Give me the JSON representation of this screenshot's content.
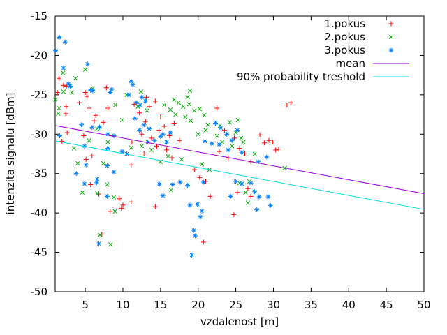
{
  "chart": {
    "x_ticks": [
      5,
      10,
      15,
      20,
      25,
      30,
      35,
      40,
      45,
      50
    ],
    "y_ticks": [
      -50,
      -45,
      -40,
      -35,
      -30,
      -25,
      -20,
      -15
    ],
    "frame_color": "#000000",
    "background": "#ffffff"
  },
  "chart_data": {
    "type": "scatter",
    "title": "",
    "xlabel": "vzdalenost [m]",
    "ylabel": "intenzita signalu [dBm]",
    "xlim": [
      1,
      50
    ],
    "ylim": [
      -50,
      -15
    ],
    "grid": false,
    "legend_position": "top-right",
    "series": [
      {
        "name": "1.pokus",
        "marker": "plus",
        "color": "#ff0000",
        "points": [
          [
            1.3,
            -24.7
          ],
          [
            1.5,
            -22.9
          ],
          [
            2.1,
            -23.8
          ],
          [
            2.5,
            -23.9
          ],
          [
            5.0,
            -24.7
          ],
          [
            5.2,
            -25.2
          ],
          [
            7.8,
            -24.1
          ],
          [
            2.45,
            -26.5
          ],
          [
            4.2,
            -26.0
          ],
          [
            5.5,
            -26.7
          ],
          [
            8.0,
            -26.7
          ],
          [
            2.4,
            -27.4
          ],
          [
            6.4,
            -27.6
          ],
          [
            6.2,
            -28.3
          ],
          [
            7.4,
            -28.5
          ],
          [
            4.8,
            -30.2
          ],
          [
            1.9,
            -30.9
          ],
          [
            2.6,
            -29.8
          ],
          [
            5.9,
            -32.75
          ],
          [
            5.1,
            -33.2
          ],
          [
            11.1,
            -33.9
          ],
          [
            5.7,
            -36.4
          ],
          [
            6.8,
            -37.6
          ],
          [
            9.5,
            -38.2
          ],
          [
            11.1,
            -38.6
          ],
          [
            10.0,
            -39.0
          ],
          [
            9.8,
            -39.4
          ],
          [
            8.3,
            -39.8
          ],
          [
            7.2,
            -42.7
          ],
          [
            13.1,
            -25.3
          ],
          [
            11.5,
            -26.2
          ],
          [
            12.2,
            -27.3
          ],
          [
            13.5,
            -26.5
          ],
          [
            14.3,
            -25.8
          ],
          [
            15.0,
            -27.8
          ],
          [
            13.0,
            -28.4
          ],
          [
            14.8,
            -29.5
          ],
          [
            12.5,
            -30.0
          ],
          [
            11.2,
            -31.0
          ],
          [
            13.8,
            -30.5
          ],
          [
            15.5,
            -29.0
          ],
          [
            16.2,
            -30.2
          ],
          [
            14.5,
            -31.5
          ],
          [
            15.8,
            -32.0
          ],
          [
            12.8,
            -32.5
          ],
          [
            16.8,
            -28.6
          ],
          [
            17.5,
            -30.8
          ],
          [
            16.5,
            -33.0
          ],
          [
            19.5,
            -34.5
          ],
          [
            20.2,
            -35.5
          ],
          [
            21.0,
            -36.0
          ],
          [
            14.3,
            -39.2
          ],
          [
            21.6,
            -37.9
          ],
          [
            20.7,
            -43.7
          ],
          [
            22.5,
            -26.7
          ],
          [
            32.3,
            -26.0
          ],
          [
            31.8,
            -26.3
          ],
          [
            28.2,
            -30.1
          ],
          [
            28.8,
            -31.1
          ],
          [
            29.4,
            -30.8
          ],
          [
            29.9,
            -31.0
          ],
          [
            30.3,
            -32.0
          ],
          [
            30.7,
            -31.9
          ],
          [
            23.5,
            -29.5
          ],
          [
            24.8,
            -30.5
          ],
          [
            25.5,
            -31.8
          ],
          [
            26.2,
            -32.5
          ],
          [
            27.0,
            -33.5
          ],
          [
            24.0,
            -33.0
          ],
          [
            22.8,
            -32.2
          ],
          [
            26.6,
            -36.9
          ],
          [
            25.2,
            -37.4
          ],
          [
            27.0,
            -37.9
          ],
          [
            24.75,
            -40.2
          ]
        ]
      },
      {
        "name": "2.pokus",
        "marker": "cross",
        "color": "#00ac00",
        "points": [
          [
            2.05,
            -22.2
          ],
          [
            5.0,
            -21.8
          ],
          [
            3.7,
            -22.9
          ],
          [
            2.1,
            -24.6
          ],
          [
            3.2,
            -24.7
          ],
          [
            6.0,
            -24.2
          ],
          [
            1.0,
            -25.6
          ],
          [
            1.5,
            -26.7
          ],
          [
            1.4,
            -27.4
          ],
          [
            9.0,
            -26.3
          ],
          [
            10.5,
            -25.0
          ],
          [
            6.6,
            -29.3
          ],
          [
            9.9,
            -28.2
          ],
          [
            5.5,
            -30.8
          ],
          [
            3.5,
            -31.8
          ],
          [
            8.0,
            -31.0
          ],
          [
            11.1,
            -31.7
          ],
          [
            4.0,
            -33.7
          ],
          [
            7.4,
            -33.7
          ],
          [
            7.9,
            -36.4
          ],
          [
            4.6,
            -37.4
          ],
          [
            6.6,
            -37.5
          ],
          [
            8.8,
            -38.0
          ],
          [
            8.95,
            -39.8
          ],
          [
            6.94,
            -42.8
          ],
          [
            8.36,
            -44.0
          ],
          [
            12.4,
            -24.6
          ],
          [
            18.9,
            -24.5
          ],
          [
            18.6,
            -25.3
          ],
          [
            16.8,
            -25.6
          ],
          [
            17.4,
            -26.0
          ],
          [
            18.0,
            -26.5
          ],
          [
            18.8,
            -26.2
          ],
          [
            19.5,
            -27.0
          ],
          [
            20.2,
            -26.8
          ],
          [
            17.0,
            -27.5
          ],
          [
            18.3,
            -27.8
          ],
          [
            19.0,
            -28.3
          ],
          [
            20.8,
            -27.6
          ],
          [
            21.3,
            -28.8
          ],
          [
            16.3,
            -26.9
          ],
          [
            12.0,
            -26.5
          ],
          [
            13.2,
            -27.0
          ],
          [
            15.5,
            -26.3
          ],
          [
            12.5,
            -31.5
          ],
          [
            13.8,
            -32.0
          ],
          [
            15.0,
            -33.5
          ],
          [
            16.0,
            -32.8
          ],
          [
            17.8,
            -33.2
          ],
          [
            20.0,
            -30.0
          ],
          [
            21.0,
            -29.5
          ],
          [
            20.5,
            -33.8
          ],
          [
            21.5,
            -34.5
          ],
          [
            16.4,
            -37.1
          ],
          [
            22.9,
            -28.9
          ],
          [
            24.2,
            -28.5
          ],
          [
            25.0,
            -29.8
          ],
          [
            25.7,
            -30.5
          ],
          [
            23.2,
            -31.0
          ],
          [
            24.5,
            -31.5
          ],
          [
            26.0,
            -31.0
          ],
          [
            22.5,
            -30.2
          ],
          [
            25.3,
            -28.2
          ],
          [
            27.5,
            -32.5
          ],
          [
            31.5,
            -34.3
          ],
          [
            25.5,
            -36.2
          ],
          [
            26.8,
            -36.0
          ],
          [
            26.3,
            -37.4
          ],
          [
            26.6,
            -38.7
          ]
        ]
      },
      {
        "name": "3.pokus",
        "marker": "asterisk",
        "color": "#0080ff",
        "points": [
          [
            1.56,
            -17.7
          ],
          [
            2.33,
            -18.3
          ],
          [
            1.05,
            -19.4
          ],
          [
            2.1,
            -21.6
          ],
          [
            5.3,
            -21.1
          ],
          [
            2.76,
            -23.6
          ],
          [
            3.0,
            -23.9
          ],
          [
            5.7,
            -24.4
          ],
          [
            6.0,
            -24.5
          ],
          [
            8.5,
            -24.3
          ],
          [
            8.3,
            -24.7
          ],
          [
            11.1,
            -23.3
          ],
          [
            11.3,
            -23.7
          ],
          [
            12.5,
            -25.3
          ],
          [
            10.8,
            -25.0
          ],
          [
            4.5,
            -28.8
          ],
          [
            5.9,
            -29.15
          ],
          [
            6.9,
            -29.1
          ],
          [
            8.0,
            -30.0
          ],
          [
            8.8,
            -30.2
          ],
          [
            1.6,
            -30.2
          ],
          [
            4.9,
            -31.5
          ],
          [
            8.0,
            -31.8
          ],
          [
            9.9,
            -32.2
          ],
          [
            10.5,
            -32.5
          ],
          [
            5.1,
            -33.9
          ],
          [
            7.9,
            -34.0
          ],
          [
            3.8,
            -35.0
          ],
          [
            8.8,
            -34.8
          ],
          [
            6.6,
            -35.7
          ],
          [
            4.9,
            -36.3
          ],
          [
            6.5,
            -36.15
          ],
          [
            7.9,
            -37.9
          ],
          [
            6.8,
            -43.9
          ],
          [
            11.8,
            -26.0
          ],
          [
            12.3,
            -26.3
          ],
          [
            13.0,
            -25.8
          ],
          [
            11.6,
            -28.0
          ],
          [
            12.8,
            -28.8
          ],
          [
            13.5,
            -29.3
          ],
          [
            14.2,
            -30.8
          ],
          [
            15.0,
            -30.3
          ],
          [
            13.3,
            -31.0
          ],
          [
            12.2,
            -29.5
          ],
          [
            15.3,
            -30.0
          ],
          [
            15.8,
            -31.0
          ],
          [
            16.3,
            -29.8
          ],
          [
            20.9,
            -30.9
          ],
          [
            21.8,
            -31.2
          ],
          [
            14.85,
            -36.35
          ],
          [
            16.6,
            -36.4
          ],
          [
            17.6,
            -36.1
          ],
          [
            18.6,
            -36.5
          ],
          [
            15.3,
            -37.8
          ],
          [
            20.7,
            -36.1
          ],
          [
            18.9,
            -39.0
          ],
          [
            19.9,
            -38.9
          ],
          [
            20.5,
            -39.75
          ],
          [
            20.3,
            -40.5
          ],
          [
            19.4,
            -42.2
          ],
          [
            19.6,
            -42.9
          ],
          [
            19.15,
            -45.35
          ],
          [
            22.3,
            -28.6
          ],
          [
            23.0,
            -29.2
          ],
          [
            23.8,
            -30.0
          ],
          [
            24.5,
            -30.8
          ],
          [
            25.2,
            -29.5
          ],
          [
            22.8,
            -31.3
          ],
          [
            24.0,
            -32.0
          ],
          [
            25.8,
            -32.3
          ],
          [
            29.1,
            -32.9
          ],
          [
            28.0,
            -33.5
          ],
          [
            24.3,
            -37.9
          ],
          [
            27.5,
            -37.3
          ],
          [
            28.1,
            -37.95
          ],
          [
            29.3,
            -37.95
          ],
          [
            29.6,
            -39.05
          ],
          [
            27.8,
            -39.6
          ],
          [
            25.0,
            -36.0
          ],
          [
            25.8,
            -36.3
          ],
          [
            27.0,
            -36.2
          ]
        ]
      }
    ],
    "lines": [
      {
        "name": "mean",
        "color": "#9400d3",
        "from": [
          1,
          -28.9
        ],
        "to": [
          50,
          -37.55
        ]
      },
      {
        "name": "90% probability treshold",
        "color": "#00dde0",
        "from": [
          1,
          -30.85
        ],
        "to": [
          50,
          -39.55
        ]
      }
    ]
  }
}
